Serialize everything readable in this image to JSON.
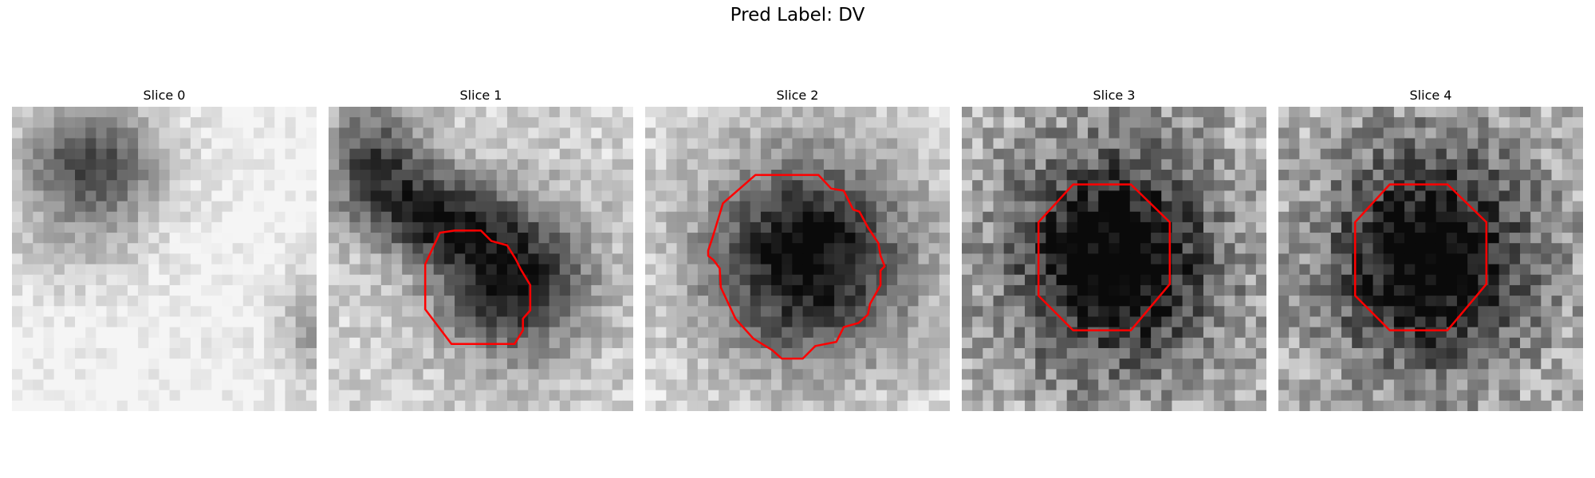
{
  "figure": {
    "title": "Pred Label: DV"
  },
  "slices": [
    {
      "title": "Slice 0",
      "contour": null
    },
    {
      "title": "Slice 1",
      "contour": "irregular"
    },
    {
      "title": "Slice 2",
      "contour": "irregular"
    },
    {
      "title": "Slice 3",
      "contour": "octagon"
    },
    {
      "title": "Slice 4",
      "contour": "octagon"
    }
  ],
  "colors": {
    "contour": "#ff0000",
    "background": "#ffffff"
  },
  "colormap": "gray"
}
